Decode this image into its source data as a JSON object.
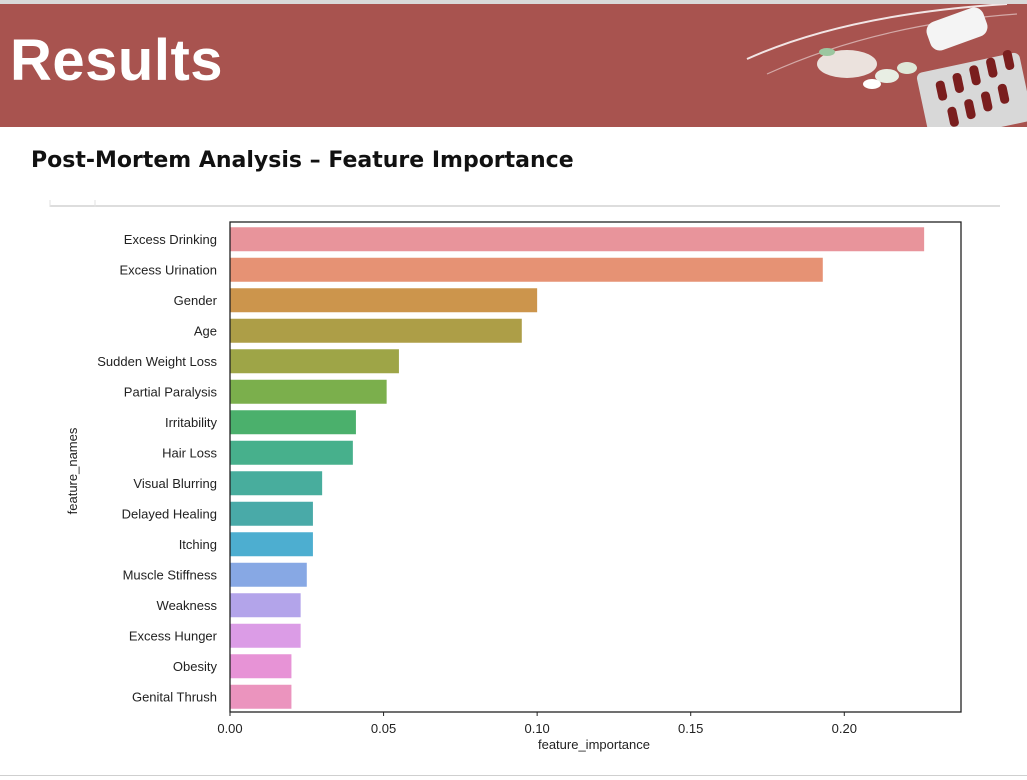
{
  "slide": {
    "title": "Results",
    "subtitle": "Post-Mortem Analysis – Feature Importance"
  },
  "colors": {
    "banner": "#a8534f",
    "title_text": "#ffffff"
  },
  "chart_data": {
    "type": "bar",
    "orientation": "horizontal",
    "categories": [
      "Excess Drinking",
      "Excess Urination",
      "Gender",
      "Age",
      "Sudden Weight Loss",
      "Partial Paralysis",
      "Irritability",
      "Hair Loss",
      "Visual Blurring",
      "Delayed Healing",
      "Itching",
      "Muscle Stiffness",
      "Weakness",
      "Excess Hunger",
      "Obesity",
      "Genital Thrush"
    ],
    "values": [
      0.226,
      0.193,
      0.1,
      0.095,
      0.055,
      0.051,
      0.041,
      0.04,
      0.03,
      0.027,
      0.027,
      0.025,
      0.023,
      0.023,
      0.02,
      0.02
    ],
    "bar_colors": [
      "#e8949b",
      "#e69274",
      "#cc954c",
      "#ad9e47",
      "#9ea547",
      "#7baf4c",
      "#4bb06c",
      "#47b08c",
      "#48ad9d",
      "#49aaa8",
      "#4daed0",
      "#87a8e4",
      "#b3a4ea",
      "#db9ce6",
      "#e793d6",
      "#eb94be"
    ],
    "xlabel": "feature_importance",
    "ylabel": "feature_names",
    "xticks": [
      0.0,
      0.05,
      0.1,
      0.15,
      0.2
    ],
    "xtick_labels": [
      "0.00",
      "0.05",
      "0.10",
      "0.15",
      "0.20"
    ],
    "xlim": [
      0.0,
      0.238
    ],
    "grid": false,
    "legend": "none"
  }
}
